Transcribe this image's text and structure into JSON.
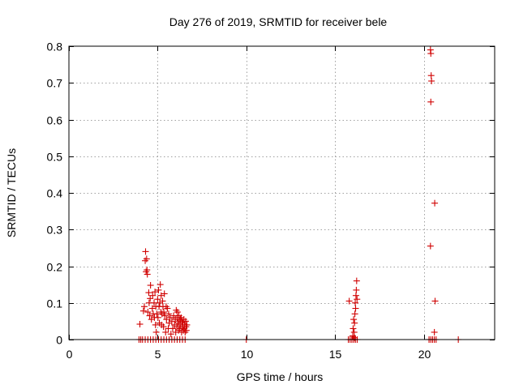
{
  "chart_data": {
    "type": "scatter",
    "title": "Day 276 of 2019, SRMTID for receiver bele",
    "xlabel": "GPS time / hours",
    "ylabel": "SRMTID / TECUs",
    "xlim": [
      0,
      24
    ],
    "ylim": [
      0,
      0.8
    ],
    "xticks": [
      0,
      5,
      10,
      15,
      20
    ],
    "xtick_labels": [
      "0",
      "5",
      "10",
      "15",
      "20"
    ],
    "yticks": [
      0,
      0.1,
      0.2,
      0.3,
      0.4,
      0.5,
      0.6,
      0.7,
      0.8
    ],
    "ytick_labels": [
      "0",
      "0.1",
      "0.2",
      "0.3",
      "0.4",
      "0.5",
      "0.6",
      "0.7",
      "0.8"
    ],
    "grid": true,
    "marker": "+",
    "color": "#d00000",
    "series": [
      {
        "name": "SRMTID",
        "points": [
          [
            3.95,
            0
          ],
          [
            4.05,
            0
          ],
          [
            4.15,
            0
          ],
          [
            4.3,
            0
          ],
          [
            4.45,
            0
          ],
          [
            4.6,
            0
          ],
          [
            4.75,
            0
          ],
          [
            4.9,
            0
          ],
          [
            5.05,
            0
          ],
          [
            5.2,
            0
          ],
          [
            5.35,
            0
          ],
          [
            5.5,
            0
          ],
          [
            5.65,
            0
          ],
          [
            5.8,
            0
          ],
          [
            5.95,
            0
          ],
          [
            6.1,
            0
          ],
          [
            6.25,
            0
          ],
          [
            6.4,
            0
          ],
          [
            6.55,
            0
          ],
          [
            4.0,
            0.042
          ],
          [
            4.2,
            0.078
          ],
          [
            4.25,
            0.09
          ],
          [
            4.3,
            0.215
          ],
          [
            4.32,
            0.24
          ],
          [
            4.38,
            0.22
          ],
          [
            4.35,
            0.185
          ],
          [
            4.42,
            0.178
          ],
          [
            4.4,
            0.19
          ],
          [
            4.45,
            0.075
          ],
          [
            4.5,
            0.128
          ],
          [
            4.52,
            0.1
          ],
          [
            4.55,
            0.065
          ],
          [
            4.58,
            0.112
          ],
          [
            4.6,
            0.148
          ],
          [
            4.65,
            0.055
          ],
          [
            4.7,
            0.085
          ],
          [
            4.72,
            0.12
          ],
          [
            4.75,
            0.07
          ],
          [
            4.8,
            0.1
          ],
          [
            4.82,
            0.06
          ],
          [
            4.85,
            0.13
          ],
          [
            4.88,
            0.04
          ],
          [
            4.9,
            0.09
          ],
          [
            4.92,
            0.02
          ],
          [
            4.95,
            0.07
          ],
          [
            5.0,
            0.11
          ],
          [
            5.02,
            0.06
          ],
          [
            5.05,
            0.135
          ],
          [
            5.08,
            0.09
          ],
          [
            5.1,
            0.045
          ],
          [
            5.12,
            0.1
          ],
          [
            5.15,
            0.15
          ],
          [
            5.18,
            0.075
          ],
          [
            5.2,
            0.12
          ],
          [
            5.22,
            0.04
          ],
          [
            5.25,
            0.07
          ],
          [
            5.28,
            0.105
          ],
          [
            5.3,
            0.09
          ],
          [
            5.33,
            0.035
          ],
          [
            5.35,
            0.075
          ],
          [
            5.38,
            0.125
          ],
          [
            5.4,
            0.065
          ],
          [
            5.45,
            0.02
          ],
          [
            5.48,
            0.09
          ],
          [
            5.5,
            0.055
          ],
          [
            5.55,
            0.085
          ],
          [
            5.6,
            0.03
          ],
          [
            5.62,
            0.07
          ],
          [
            5.65,
            0.045
          ],
          [
            5.7,
            0.06
          ],
          [
            5.75,
            0.015
          ],
          [
            5.8,
            0.05
          ],
          [
            5.85,
            0.03
          ],
          [
            5.9,
            0.065
          ],
          [
            5.95,
            0.04
          ],
          [
            6.0,
            0.055
          ],
          [
            6.02,
            0.02
          ],
          [
            6.05,
            0.08
          ],
          [
            6.08,
            0.035
          ],
          [
            6.1,
            0.06
          ],
          [
            6.12,
            0.075
          ],
          [
            6.15,
            0.045
          ],
          [
            6.18,
            0.025
          ],
          [
            6.2,
            0.065
          ],
          [
            6.22,
            0.05
          ],
          [
            6.25,
            0.03
          ],
          [
            6.28,
            0.055
          ],
          [
            6.3,
            0.04
          ],
          [
            6.32,
            0.06
          ],
          [
            6.35,
            0.02
          ],
          [
            6.38,
            0.05
          ],
          [
            6.4,
            0.035
          ],
          [
            6.42,
            0.045
          ],
          [
            6.45,
            0.025
          ],
          [
            6.48,
            0.055
          ],
          [
            6.5,
            0.03
          ],
          [
            6.52,
            0.04
          ],
          [
            6.55,
            0.02
          ],
          [
            6.58,
            0.05
          ],
          [
            6.6,
            0.035
          ],
          [
            6.62,
            0.025
          ],
          [
            6.65,
            0.04
          ],
          [
            10.0,
            0
          ],
          [
            15.75,
            0
          ],
          [
            15.85,
            0
          ],
          [
            15.95,
            0
          ],
          [
            16.05,
            0
          ],
          [
            16.15,
            0
          ],
          [
            16.25,
            0
          ],
          [
            15.8,
            0.105
          ],
          [
            16.0,
            0.01
          ],
          [
            16.02,
            0.03
          ],
          [
            16.05,
            0.055
          ],
          [
            16.08,
            0.02
          ],
          [
            16.1,
            0.045
          ],
          [
            16.12,
            0.07
          ],
          [
            16.14,
            0.1
          ],
          [
            16.16,
            0.085
          ],
          [
            16.18,
            0.12
          ],
          [
            16.2,
            0.135
          ],
          [
            16.22,
            0.16
          ],
          [
            16.24,
            0.11
          ],
          [
            16.1,
            0.005
          ],
          [
            20.3,
            0
          ],
          [
            20.4,
            0
          ],
          [
            20.5,
            0
          ],
          [
            20.6,
            0
          ],
          [
            20.7,
            0
          ],
          [
            20.38,
            0.79
          ],
          [
            20.4,
            0.78
          ],
          [
            20.42,
            0.72
          ],
          [
            20.44,
            0.705
          ],
          [
            20.4,
            0.648
          ],
          [
            20.38,
            0.255
          ],
          [
            20.62,
            0.372
          ],
          [
            20.64,
            0.105
          ],
          [
            20.6,
            0.02
          ],
          [
            21.95,
            0
          ]
        ]
      }
    ]
  }
}
